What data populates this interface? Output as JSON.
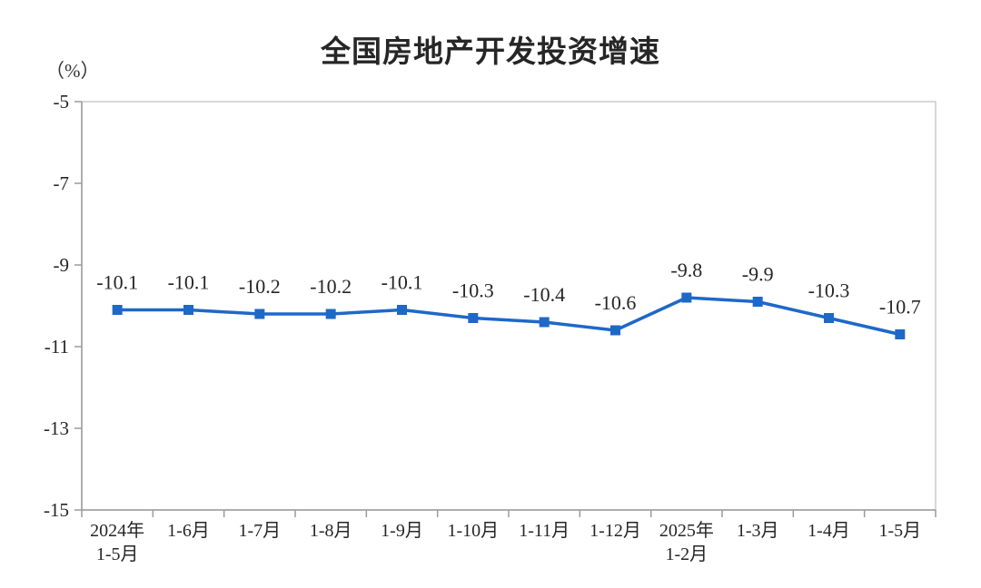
{
  "chart_data": {
    "type": "line",
    "title": "全国房地产开发投资增速",
    "unit_label": "（%）",
    "categories": [
      "2024年\n1-5月",
      "1-6月",
      "1-7月",
      "1-8月",
      "1-9月",
      "1-10月",
      "1-11月",
      "1-12月",
      "2025年\n1-2月",
      "1-3月",
      "1-4月",
      "1-5月"
    ],
    "values": [
      -10.1,
      -10.1,
      -10.2,
      -10.2,
      -10.1,
      -10.3,
      -10.4,
      -10.6,
      -9.8,
      -9.9,
      -10.3,
      -10.7
    ],
    "data_labels": [
      "-10.1",
      "-10.1",
      "-10.2",
      "-10.2",
      "-10.1",
      "-10.3",
      "-10.4",
      "-10.6",
      "-9.8",
      "-9.9",
      "-10.3",
      "-10.7"
    ],
    "y_ticks": [
      -5,
      -7,
      -9,
      -11,
      -13,
      -15
    ],
    "ylim": [
      -15,
      -5
    ],
    "xlabel": "",
    "ylabel": "",
    "grid": false,
    "legend": "none",
    "colors": {
      "series": "#1e68c8",
      "axis_line": "#9b9b9b",
      "plot_border": "#cbcbcb",
      "text": "#262626"
    }
  }
}
